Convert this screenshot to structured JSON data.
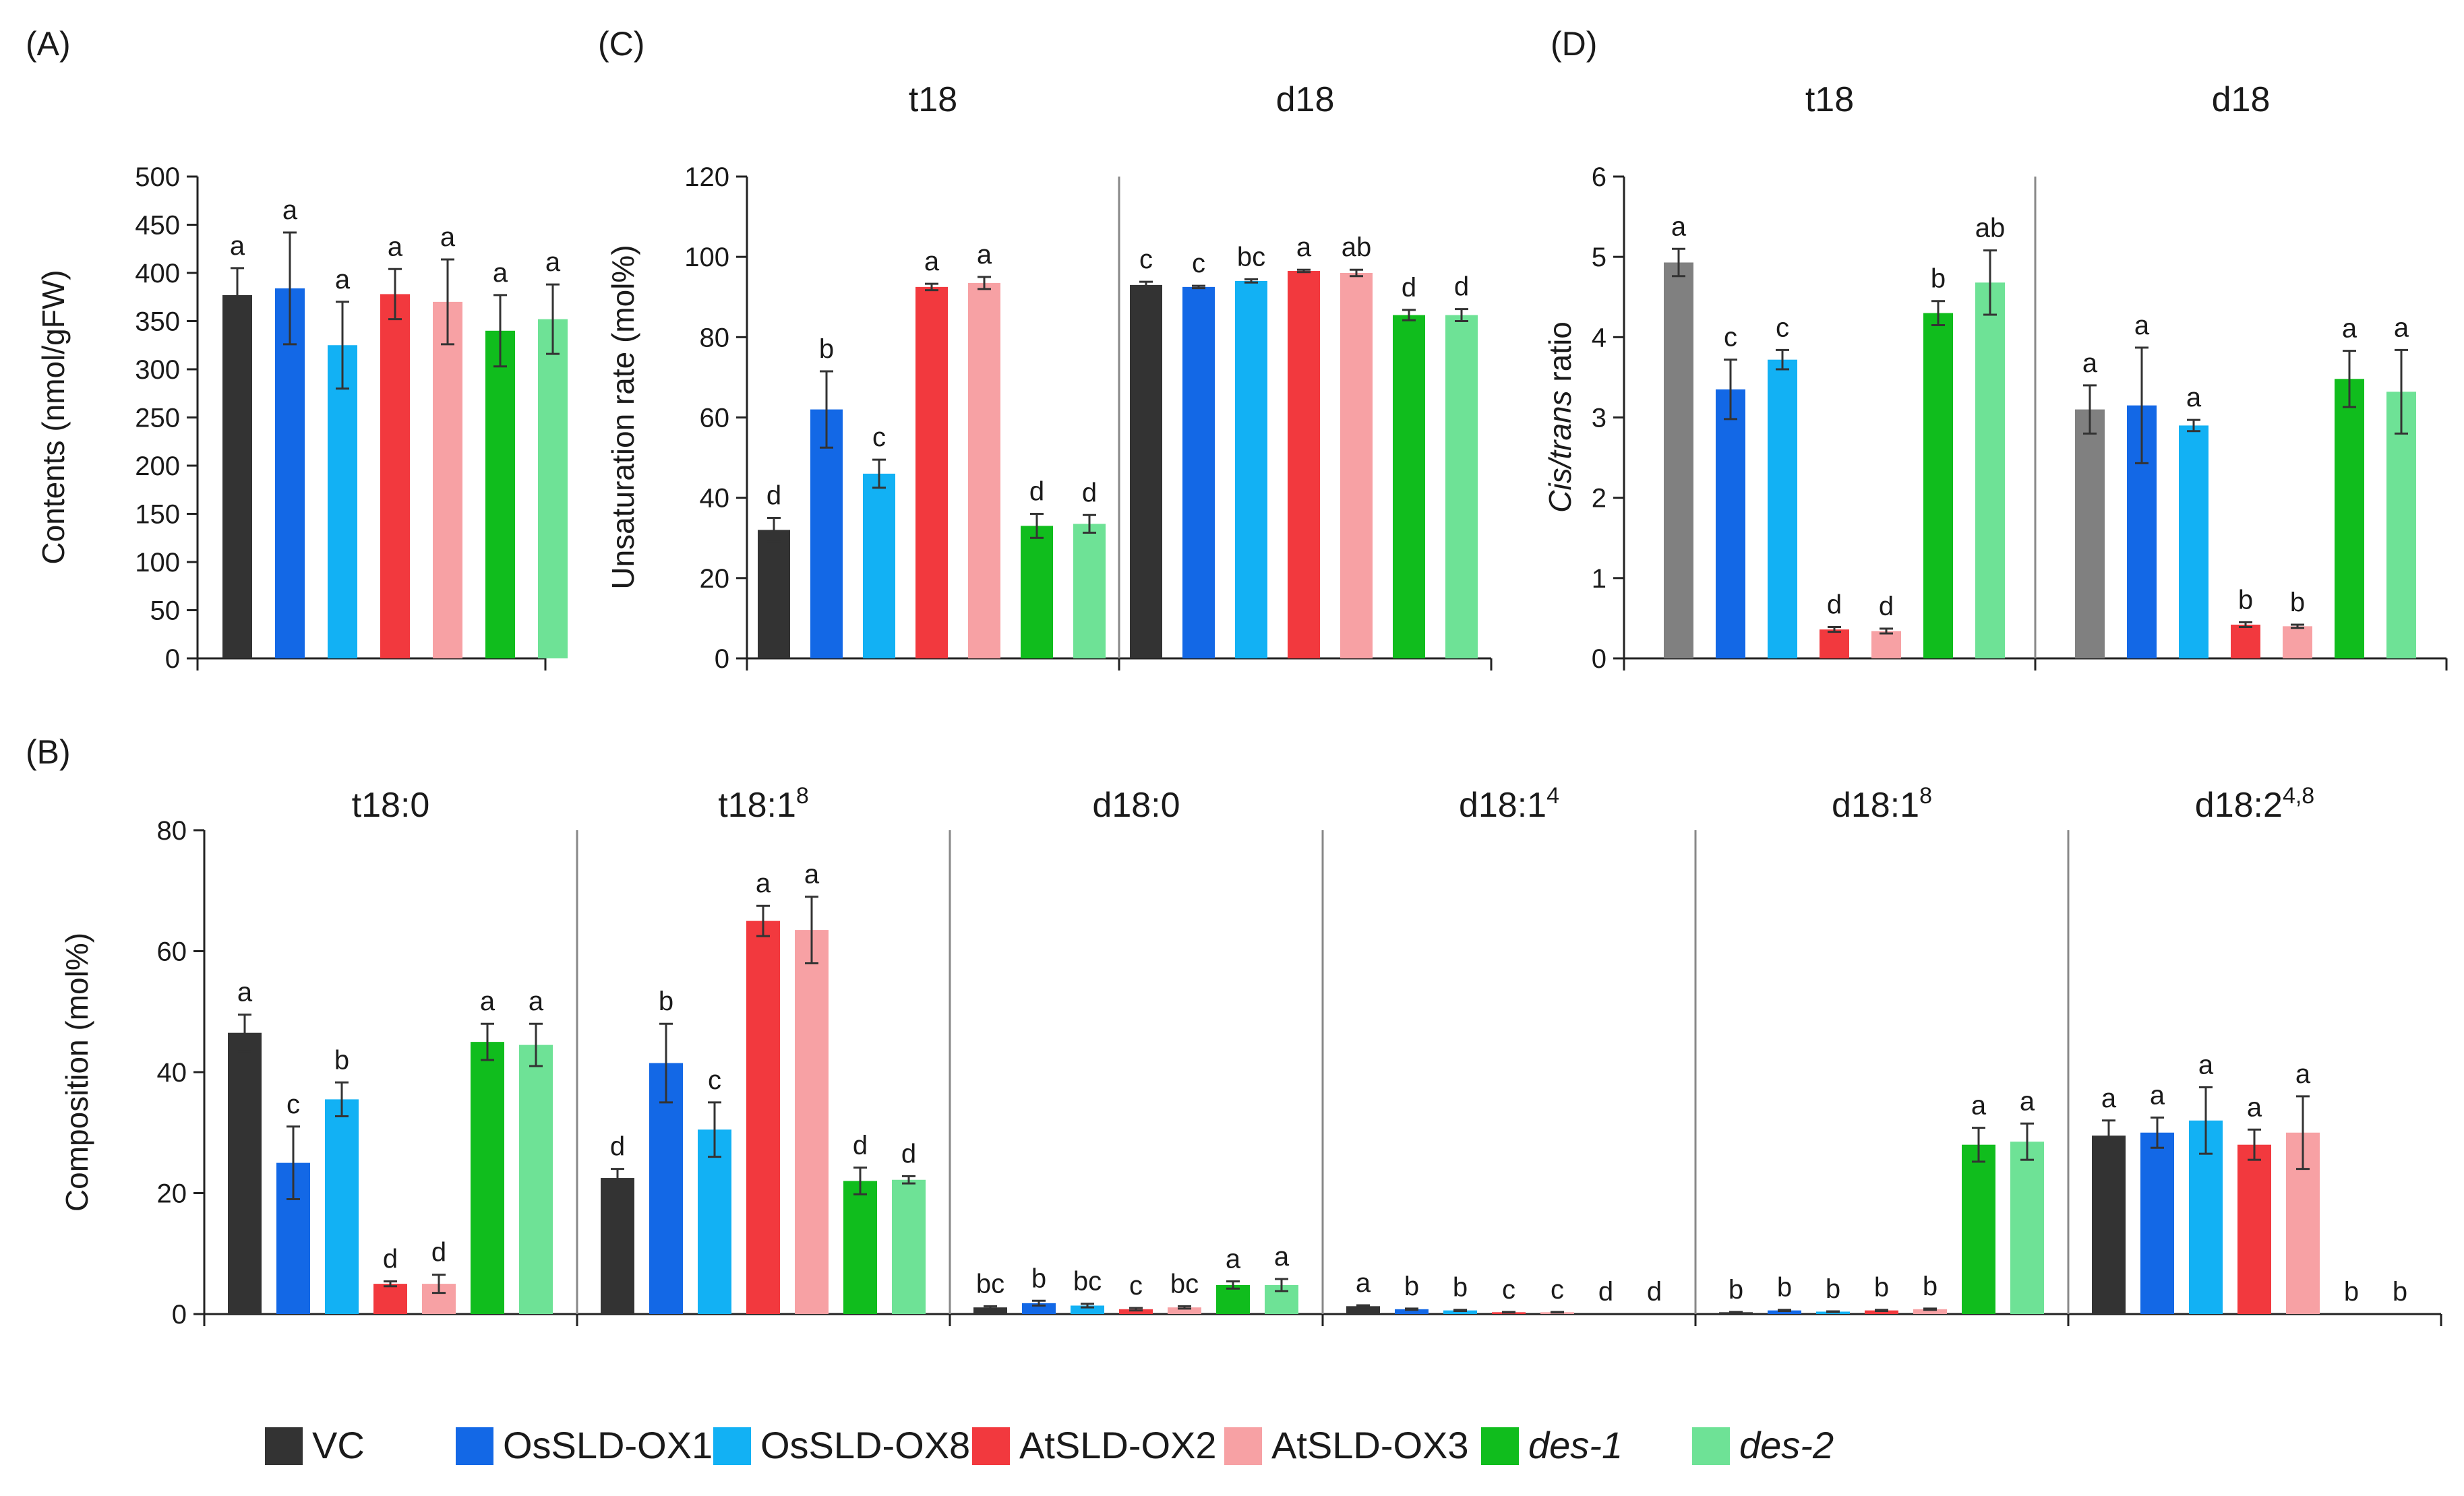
{
  "series": [
    {
      "name": "VC",
      "color": "#333333",
      "color_d": "#808080",
      "italic": false
    },
    {
      "name": "OsSLD-OX1",
      "color": "#1368e6",
      "italic": false
    },
    {
      "name": "OsSLD-OX8",
      "color": "#12b1f4",
      "italic": false
    },
    {
      "name": "AtSLD-OX2",
      "color": "#f2393e",
      "italic": false
    },
    {
      "name": "AtSLD-OX3",
      "color": "#f7a1a4",
      "italic": false
    },
    {
      "name": "des-1",
      "color": "#10bd1d",
      "italic": true
    },
    {
      "name": "des-2",
      "color": "#6ee296",
      "italic": true
    }
  ],
  "chart_data": [
    {
      "panel": "(A)",
      "type": "bar",
      "ylabel": "Contents (nmol/gFW)",
      "ylim": [
        0,
        500
      ],
      "yticks": [
        "0",
        "50",
        "100",
        "150",
        "200",
        "250",
        "300",
        "350",
        "400",
        "450",
        "500"
      ],
      "groups": [
        {
          "title": "",
          "values": [
            377,
            384,
            325,
            378,
            370,
            340,
            352
          ],
          "errors": [
            28,
            58,
            45,
            26,
            44,
            37,
            36
          ],
          "letters": [
            "a",
            "a",
            "a",
            "a",
            "a",
            "a",
            "a"
          ]
        }
      ]
    },
    {
      "panel": "(B)",
      "type": "bar",
      "ylabel": "Composition (mol%)",
      "ylim": [
        0,
        80
      ],
      "yticks": [
        "0",
        "20",
        "40",
        "60",
        "80"
      ],
      "groups": [
        {
          "title": "t18:0",
          "sup": "",
          "values": [
            46.5,
            25,
            35.5,
            5,
            5,
            45,
            44.5
          ],
          "errors": [
            3,
            6,
            2.8,
            0.4,
            1.5,
            3,
            3.5
          ],
          "letters": [
            "a",
            "c",
            "b",
            "d",
            "d",
            "a",
            "a"
          ]
        },
        {
          "title": "t18:1",
          "sup": "8",
          "values": [
            22.5,
            41.5,
            30.5,
            65,
            63.5,
            22,
            22.2
          ],
          "errors": [
            1.5,
            6.5,
            4.5,
            2.5,
            5.5,
            2.2,
            0.6
          ],
          "letters": [
            "d",
            "b",
            "c",
            "a",
            "a",
            "d",
            "d"
          ]
        },
        {
          "title": "d18:0",
          "sup": "",
          "values": [
            1.1,
            1.8,
            1.4,
            0.8,
            1.1,
            4.8,
            4.8
          ],
          "errors": [
            0.2,
            0.4,
            0.3,
            0.2,
            0.2,
            0.6,
            1.0
          ],
          "letters": [
            "bc",
            "b",
            "bc",
            "c",
            "bc",
            "a",
            "a"
          ]
        },
        {
          "title": "d18:1",
          "sup": "4",
          "values": [
            1.3,
            0.8,
            0.6,
            0.3,
            0.3,
            0,
            0
          ],
          "errors": [
            0.15,
            0.1,
            0.1,
            0.05,
            0.05,
            0,
            0
          ],
          "letters": [
            "a",
            "b",
            "b",
            "c",
            "c",
            "d",
            "d"
          ]
        },
        {
          "title": "d18:1",
          "sup": "8",
          "values": [
            0.3,
            0.6,
            0.4,
            0.6,
            0.8,
            28,
            28.5
          ],
          "errors": [
            0.05,
            0.1,
            0.05,
            0.1,
            0.1,
            2.8,
            3
          ],
          "letters": [
            "b",
            "b",
            "b",
            "b",
            "b",
            "a",
            "a"
          ]
        },
        {
          "title": "d18:2",
          "sup": "4,8",
          "values": [
            29.5,
            30,
            32,
            28,
            30,
            0,
            0
          ],
          "errors": [
            2.5,
            2.5,
            5.5,
            2.5,
            6,
            0,
            0
          ],
          "letters": [
            "a",
            "a",
            "a",
            "a",
            "a",
            "b",
            "b"
          ]
        }
      ]
    },
    {
      "panel": "(C)",
      "type": "bar",
      "ylabel": "Unsaturation rate (mol%)",
      "ylim": [
        0,
        120
      ],
      "yticks": [
        "0",
        "20",
        "40",
        "60",
        "80",
        "100",
        "120"
      ],
      "groups": [
        {
          "title": "t18",
          "values": [
            32,
            62,
            46,
            92.5,
            93.5,
            33,
            33.5
          ],
          "errors": [
            3,
            9.5,
            3.5,
            0.8,
            1.5,
            3,
            2.2
          ],
          "letters": [
            "d",
            "b",
            "c",
            "a",
            "a",
            "d",
            "d"
          ]
        },
        {
          "title": "d18",
          "values": [
            93,
            92.5,
            94,
            96.5,
            96,
            85.5,
            85.5
          ],
          "errors": [
            0.8,
            0.3,
            0.4,
            0.3,
            0.8,
            1.3,
            1.5
          ],
          "letters": [
            "c",
            "c",
            "bc",
            "a",
            "ab",
            "d",
            "d"
          ]
        }
      ]
    },
    {
      "panel": "(D)",
      "type": "bar",
      "ylabel_italic": "Cis/trans",
      "ylabel_rest": " ratio",
      "ylim": [
        0,
        6
      ],
      "yticks": [
        "0",
        "1",
        "2",
        "3",
        "4",
        "5",
        "6"
      ],
      "groups": [
        {
          "title": "t18",
          "values": [
            4.93,
            3.35,
            3.72,
            0.36,
            0.34,
            4.3,
            4.68
          ],
          "errors": [
            0.17,
            0.37,
            0.12,
            0.03,
            0.03,
            0.15,
            0.4
          ],
          "letters": [
            "a",
            "c",
            "c",
            "d",
            "d",
            "b",
            "ab"
          ]
        },
        {
          "title": "d18",
          "values": [
            3.1,
            3.15,
            2.9,
            0.42,
            0.4,
            3.48,
            3.32
          ],
          "errors": [
            0.3,
            0.72,
            0.07,
            0.03,
            0.02,
            0.35,
            0.52
          ],
          "letters": [
            "a",
            "a",
            "a",
            "b",
            "b",
            "a",
            "a"
          ]
        }
      ]
    }
  ]
}
